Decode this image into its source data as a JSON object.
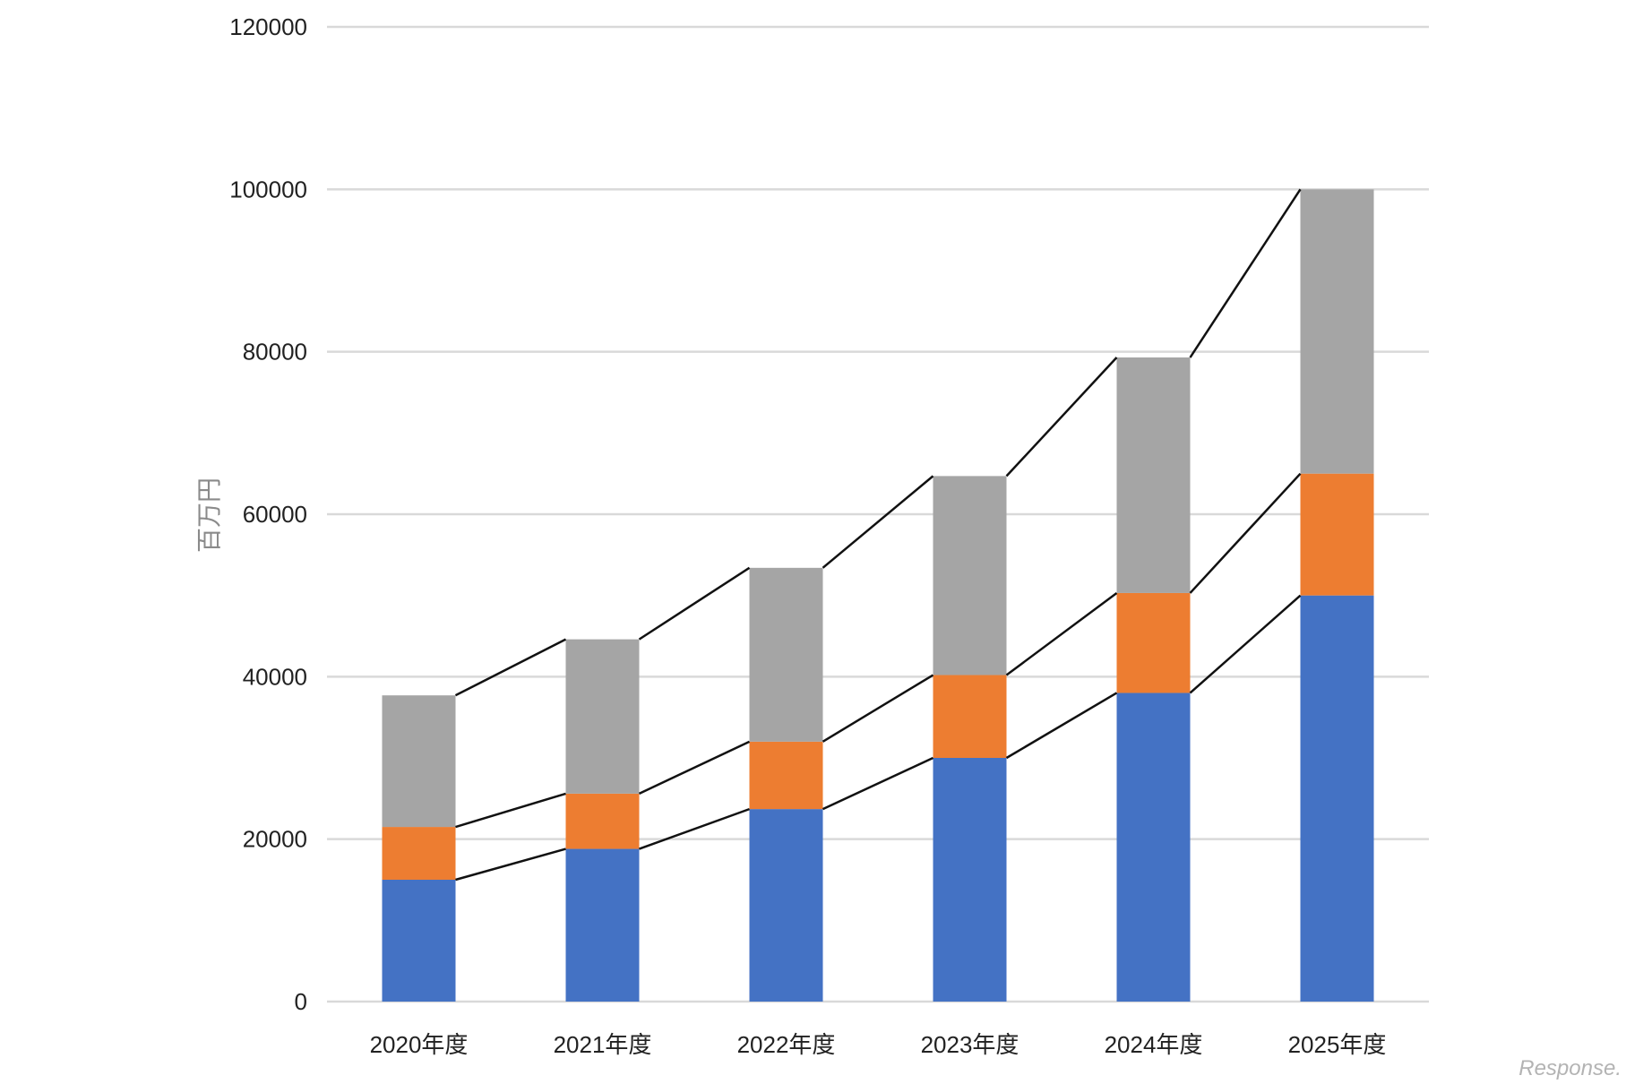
{
  "chart_data": {
    "type": "bar",
    "stacked": true,
    "categories": [
      "2020年度",
      "2021年度",
      "2022年度",
      "2023年度",
      "2024年度",
      "2025年度"
    ],
    "series": [
      {
        "values": [
          15000,
          18800,
          23700,
          30000,
          38000,
          50000
        ],
        "color": "#4472c4"
      },
      {
        "values": [
          6500,
          6800,
          8300,
          10200,
          12300,
          15000
        ],
        "color": "#ed7d31"
      },
      {
        "values": [
          16200,
          19000,
          21400,
          24500,
          29000,
          35000
        ],
        "color": "#a5a5a5"
      }
    ],
    "title": "",
    "xlabel": "",
    "ylabel": "百万円",
    "ylim": [
      0,
      120000
    ],
    "yticks": [
      "0",
      "20000",
      "40000",
      "60000",
      "80000",
      "100000",
      "120000"
    ],
    "grid": true,
    "legend": "none",
    "series_lines": true
  },
  "watermark": "Response."
}
